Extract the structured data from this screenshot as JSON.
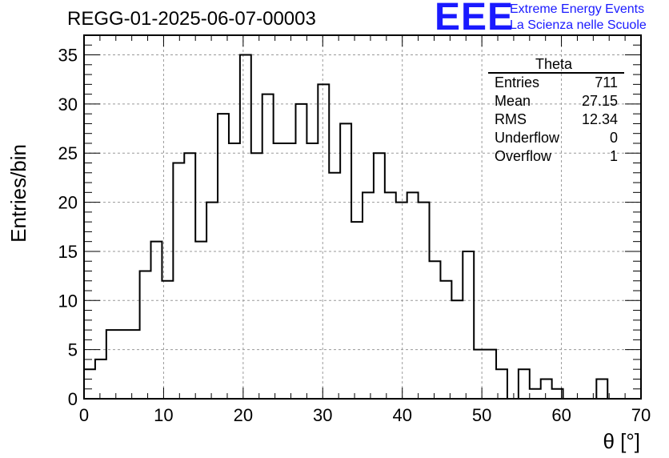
{
  "header": {
    "run_title": "REGG-01-2025-06-07-00003",
    "logo_mark": "EEE",
    "logo_line1": "Extreme Energy Events",
    "logo_line2": "La Scienza nelle Scuole"
  },
  "stats_box": {
    "title": "Theta",
    "rows": [
      {
        "label": "Entries",
        "value": "711"
      },
      {
        "label": "Mean",
        "value": "27.15"
      },
      {
        "label": "RMS",
        "value": "12.34"
      },
      {
        "label": "Underflow",
        "value": "0"
      },
      {
        "label": "Overflow",
        "value": "1"
      }
    ]
  },
  "chart_data": {
    "type": "bar",
    "style": "step-histogram",
    "title": "REGG-01-2025-06-07-00003",
    "xlabel": "θ [°]",
    "ylabel": "Entries/bin",
    "xlim": [
      0,
      70
    ],
    "ylim": [
      0,
      37
    ],
    "bin_width": 1.4,
    "bin_start": 0,
    "values": [
      3,
      4,
      7,
      7,
      7,
      13,
      16,
      12,
      24,
      25,
      16,
      20,
      29,
      26,
      35,
      25,
      31,
      26,
      26,
      30,
      26,
      32,
      23,
      28,
      18,
      21,
      25,
      21,
      20,
      21,
      20,
      14,
      12,
      10,
      15,
      5,
      5,
      3,
      0,
      3,
      1,
      2,
      1,
      0,
      0,
      0,
      2,
      0
    ],
    "x_ticks": [
      "0",
      "10",
      "20",
      "30",
      "40",
      "50",
      "60",
      "70"
    ],
    "y_ticks": [
      "0",
      "5",
      "10",
      "15",
      "20",
      "25",
      "30",
      "35"
    ],
    "grid": true,
    "color": "#000000"
  }
}
